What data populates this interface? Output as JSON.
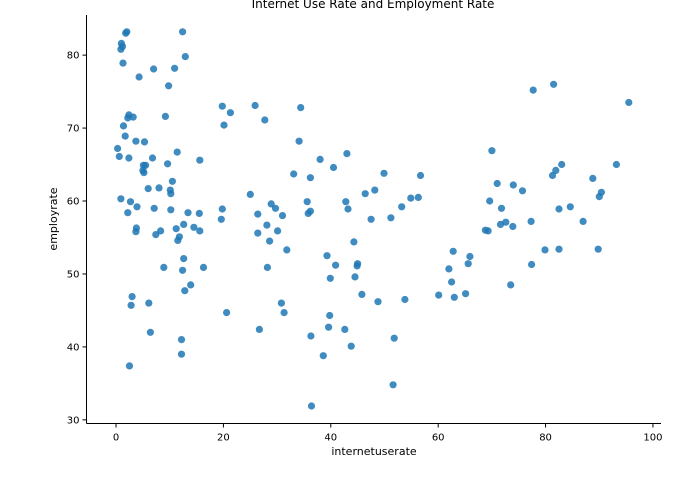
{
  "chart_data": {
    "type": "scatter",
    "title": "Internet Use Rate and Employment Rate",
    "xlabel": "internetuserate",
    "ylabel": "employrate",
    "xlim": [
      -5.5,
      101.5
    ],
    "ylim": [
      29.5,
      85.5
    ],
    "xticks": [
      0,
      20,
      40,
      60,
      80,
      100
    ],
    "yticks": [
      30,
      40,
      50,
      60,
      70,
      80
    ],
    "grid": false,
    "point_color": "#1f77b4",
    "points": [
      [
        0.3,
        67.2
      ],
      [
        0.6,
        66.1
      ],
      [
        0.9,
        60.3
      ],
      [
        0.9,
        80.8
      ],
      [
        1.0,
        81.6
      ],
      [
        1.2,
        81.2
      ],
      [
        1.3,
        78.9
      ],
      [
        1.4,
        70.3
      ],
      [
        1.7,
        68.9
      ],
      [
        1.8,
        83.0
      ],
      [
        2.0,
        83.2
      ],
      [
        2.2,
        58.4
      ],
      [
        2.2,
        71.4
      ],
      [
        2.4,
        65.9
      ],
      [
        2.4,
        71.8
      ],
      [
        2.5,
        37.4
      ],
      [
        2.7,
        59.9
      ],
      [
        2.8,
        45.7
      ],
      [
        3.0,
        46.9
      ],
      [
        3.2,
        71.5
      ],
      [
        3.7,
        55.8
      ],
      [
        3.7,
        68.2
      ],
      [
        3.8,
        56.3
      ],
      [
        3.9,
        59.2
      ],
      [
        4.3,
        77.0
      ],
      [
        5.0,
        64.2
      ],
      [
        5.1,
        64.9
      ],
      [
        5.2,
        63.9
      ],
      [
        5.3,
        68.1
      ],
      [
        5.5,
        64.9
      ],
      [
        6.0,
        61.7
      ],
      [
        6.1,
        46.0
      ],
      [
        6.4,
        42.0
      ],
      [
        6.8,
        65.9
      ],
      [
        7.0,
        78.1
      ],
      [
        7.1,
        59.0
      ],
      [
        7.4,
        55.4
      ],
      [
        8.0,
        61.8
      ],
      [
        8.3,
        55.9
      ],
      [
        8.9,
        50.9
      ],
      [
        9.2,
        71.6
      ],
      [
        9.6,
        65.1
      ],
      [
        9.8,
        75.8
      ],
      [
        10.1,
        61.5
      ],
      [
        10.2,
        61.0
      ],
      [
        10.2,
        58.8
      ],
      [
        10.5,
        62.7
      ],
      [
        10.9,
        78.2
      ],
      [
        11.2,
        56.2
      ],
      [
        11.4,
        66.7
      ],
      [
        11.5,
        54.6
      ],
      [
        11.8,
        55.1
      ],
      [
        12.2,
        41.0
      ],
      [
        12.2,
        39.0
      ],
      [
        12.4,
        50.5
      ],
      [
        12.4,
        83.2
      ],
      [
        12.6,
        56.8
      ],
      [
        12.6,
        52.1
      ],
      [
        12.8,
        47.7
      ],
      [
        12.9,
        79.8
      ],
      [
        13.4,
        58.4
      ],
      [
        13.9,
        48.5
      ],
      [
        14.5,
        56.4
      ],
      [
        15.5,
        58.3
      ],
      [
        15.6,
        65.6
      ],
      [
        15.6,
        55.9
      ],
      [
        16.3,
        50.9
      ],
      [
        19.6,
        57.5
      ],
      [
        19.8,
        58.9
      ],
      [
        19.8,
        73.0
      ],
      [
        20.1,
        70.4
      ],
      [
        20.6,
        44.7
      ],
      [
        21.3,
        72.1
      ],
      [
        25.0,
        60.9
      ],
      [
        25.9,
        73.1
      ],
      [
        26.4,
        58.2
      ],
      [
        26.4,
        55.6
      ],
      [
        26.7,
        42.4
      ],
      [
        27.7,
        71.1
      ],
      [
        28.1,
        56.7
      ],
      [
        28.2,
        50.9
      ],
      [
        28.6,
        54.5
      ],
      [
        28.9,
        59.6
      ],
      [
        29.7,
        59.0
      ],
      [
        30.1,
        55.9
      ],
      [
        30.8,
        46.0
      ],
      [
        31.0,
        58.0
      ],
      [
        31.3,
        44.7
      ],
      [
        31.8,
        53.3
      ],
      [
        33.1,
        63.7
      ],
      [
        34.1,
        68.2
      ],
      [
        34.4,
        72.8
      ],
      [
        35.6,
        59.9
      ],
      [
        35.8,
        58.3
      ],
      [
        36.2,
        58.6
      ],
      [
        36.2,
        63.2
      ],
      [
        36.3,
        41.5
      ],
      [
        36.4,
        31.9
      ],
      [
        38.0,
        65.7
      ],
      [
        38.6,
        38.8
      ],
      [
        39.3,
        52.5
      ],
      [
        39.6,
        42.7
      ],
      [
        39.8,
        44.3
      ],
      [
        39.9,
        49.4
      ],
      [
        40.5,
        64.6
      ],
      [
        40.9,
        51.2
      ],
      [
        42.6,
        42.4
      ],
      [
        42.8,
        59.9
      ],
      [
        43.0,
        66.5
      ],
      [
        43.2,
        58.9
      ],
      [
        43.8,
        40.1
      ],
      [
        44.3,
        54.4
      ],
      [
        44.5,
        49.6
      ],
      [
        44.9,
        51.1
      ],
      [
        45.0,
        51.4
      ],
      [
        45.8,
        47.2
      ],
      [
        46.4,
        61.0
      ],
      [
        47.5,
        57.5
      ],
      [
        48.2,
        61.5
      ],
      [
        48.8,
        46.2
      ],
      [
        49.9,
        63.8
      ],
      [
        51.2,
        57.7
      ],
      [
        51.6,
        34.8
      ],
      [
        51.8,
        41.2
      ],
      [
        53.2,
        59.2
      ],
      [
        53.8,
        46.5
      ],
      [
        54.9,
        60.4
      ],
      [
        56.3,
        60.5
      ],
      [
        56.7,
        63.5
      ],
      [
        60.1,
        47.1
      ],
      [
        62.0,
        50.7
      ],
      [
        62.5,
        48.9
      ],
      [
        62.8,
        53.1
      ],
      [
        63.0,
        46.8
      ],
      [
        65.1,
        47.3
      ],
      [
        65.6,
        51.4
      ],
      [
        65.9,
        52.4
      ],
      [
        68.8,
        56.0
      ],
      [
        69.3,
        55.9
      ],
      [
        69.6,
        60.0
      ],
      [
        70.0,
        66.9
      ],
      [
        71.0,
        62.4
      ],
      [
        71.6,
        56.8
      ],
      [
        71.8,
        59.0
      ],
      [
        72.6,
        57.1
      ],
      [
        73.5,
        48.5
      ],
      [
        73.9,
        56.5
      ],
      [
        74.0,
        62.2
      ],
      [
        75.7,
        61.4
      ],
      [
        77.3,
        57.2
      ],
      [
        77.4,
        51.3
      ],
      [
        77.7,
        75.2
      ],
      [
        79.9,
        53.3
      ],
      [
        81.3,
        63.5
      ],
      [
        81.5,
        76.0
      ],
      [
        81.9,
        64.2
      ],
      [
        82.5,
        53.4
      ],
      [
        82.5,
        58.9
      ],
      [
        83.0,
        65.0
      ],
      [
        84.6,
        59.2
      ],
      [
        87.0,
        57.2
      ],
      [
        88.8,
        63.1
      ],
      [
        89.8,
        53.4
      ],
      [
        90.0,
        60.6
      ],
      [
        90.4,
        61.2
      ],
      [
        93.2,
        65.0
      ],
      [
        95.5,
        73.5
      ]
    ]
  }
}
